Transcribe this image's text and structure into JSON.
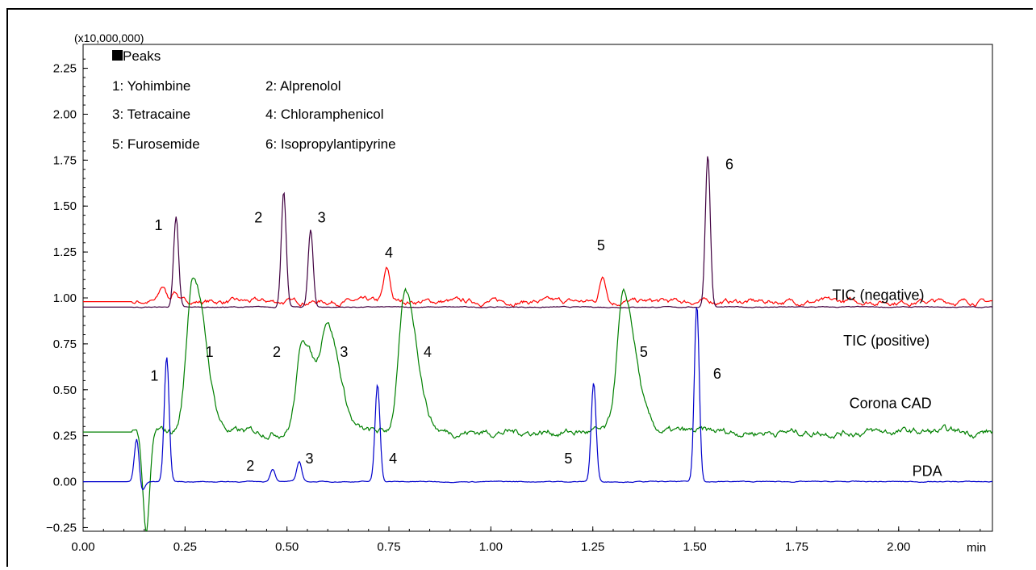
{
  "chart_data": {
    "type": "line",
    "scale_label": "(x10,000,000)",
    "x_unit": "min",
    "xlim": [
      0.0,
      2.23
    ],
    "ylim": [
      -0.27,
      2.38
    ],
    "x_ticks": [
      "0.00",
      "0.25",
      "0.50",
      "0.75",
      "1.00",
      "1.25",
      "1.50",
      "1.75",
      "2.00"
    ],
    "y_ticks": [
      "-0.25",
      "0.00",
      "0.25",
      "0.50",
      "0.75",
      "1.00",
      "1.25",
      "1.50",
      "1.75",
      "2.00",
      "2.25"
    ],
    "legend": {
      "header": "Peaks",
      "entries": [
        "1: Yohimbine",
        "2: Alprenolol",
        "3: Tetracaine",
        "4: Chloramphenicol",
        "5: Furosemide",
        "6: Isopropylantipyrine"
      ]
    },
    "series": [
      {
        "name": "TIC (negative)",
        "color": "#ff0000",
        "baseline": 0.98,
        "noise": 0.018,
        "peaks": [
          [
            0.195,
            1.06
          ],
          [
            0.225,
            1.04
          ],
          [
            0.745,
            1.15
          ],
          [
            1.275,
            1.12
          ]
        ]
      },
      {
        "name": "TIC (positive)",
        "color": "#400040",
        "baseline": 0.95,
        "noise": 0.003,
        "peaks": [
          [
            0.228,
            1.44
          ],
          [
            0.492,
            1.58
          ],
          [
            0.558,
            1.37
          ],
          [
            1.532,
            1.78
          ]
        ]
      },
      {
        "name": "Corona CAD",
        "color": "#008000",
        "baseline": 0.27,
        "noise": 0.025,
        "peaks": [
          [
            0.27,
            1.13
          ],
          [
            0.54,
            0.78
          ],
          [
            0.6,
            0.82
          ],
          [
            0.79,
            1.02
          ],
          [
            1.325,
            1.01
          ]
        ],
        "dip": [
          0.155,
          -0.27
        ]
      },
      {
        "name": "PDA",
        "color": "#0000cc",
        "baseline": 0.0,
        "noise": 0.003,
        "peaks": [
          [
            0.132,
            0.28
          ],
          [
            0.205,
            0.68
          ],
          [
            0.465,
            0.07
          ],
          [
            0.53,
            0.11
          ],
          [
            0.722,
            0.53
          ],
          [
            1.252,
            0.54
          ],
          [
            1.505,
            0.96
          ]
        ],
        "dip": [
          0.14,
          -0.08
        ]
      }
    ],
    "peak_labels": [
      {
        "text": "1",
        "x": 0.185,
        "y": 1.37
      },
      {
        "text": "2",
        "x": 0.43,
        "y": 1.41
      },
      {
        "text": "3",
        "x": 0.585,
        "y": 1.41
      },
      {
        "text": "4",
        "x": 0.75,
        "y": 1.22
      },
      {
        "text": "5",
        "x": 1.27,
        "y": 1.26
      },
      {
        "text": "6",
        "x": 1.585,
        "y": 1.7
      },
      {
        "text": "1",
        "x": 0.31,
        "y": 0.68
      },
      {
        "text": "2",
        "x": 0.475,
        "y": 0.68
      },
      {
        "text": "3",
        "x": 0.64,
        "y": 0.68
      },
      {
        "text": "4",
        "x": 0.845,
        "y": 0.68
      },
      {
        "text": "5",
        "x": 1.375,
        "y": 0.68
      },
      {
        "text": "1",
        "x": 0.175,
        "y": 0.55
      },
      {
        "text": "6",
        "x": 1.555,
        "y": 0.56
      },
      {
        "text": "2",
        "x": 0.41,
        "y": 0.06
      },
      {
        "text": "3",
        "x": 0.555,
        "y": 0.1
      },
      {
        "text": "4",
        "x": 0.76,
        "y": 0.1
      },
      {
        "text": "5",
        "x": 1.19,
        "y": 0.1
      }
    ],
    "series_labels": [
      {
        "text": "TIC (negative)",
        "x": 1.95,
        "y": 0.99
      },
      {
        "text": "TIC (positive)",
        "x": 1.97,
        "y": 0.74
      },
      {
        "text": "Corona CAD",
        "x": 1.98,
        "y": 0.4
      },
      {
        "text": "PDA",
        "x": 2.07,
        "y": 0.03
      }
    ]
  }
}
